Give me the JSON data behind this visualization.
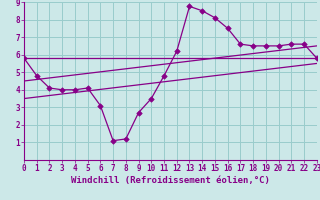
{
  "xlabel": "Windchill (Refroidissement éolien,°C)",
  "xlim": [
    0,
    23
  ],
  "ylim": [
    0,
    9
  ],
  "xticks": [
    0,
    1,
    2,
    3,
    4,
    5,
    6,
    7,
    8,
    9,
    10,
    11,
    12,
    13,
    14,
    15,
    16,
    17,
    18,
    19,
    20,
    21,
    22,
    23
  ],
  "yticks": [
    1,
    2,
    3,
    4,
    5,
    6,
    7,
    8,
    9
  ],
  "background_color": "#cce8e8",
  "line_color": "#880088",
  "grid_color": "#99cccc",
  "line1_x": [
    0,
    1,
    2,
    3,
    4,
    5,
    6,
    7,
    8,
    9,
    10,
    11,
    12,
    13,
    14,
    15,
    16,
    17,
    18,
    19,
    20,
    21,
    22,
    23
  ],
  "line1_y": [
    5.8,
    4.8,
    4.1,
    4.0,
    4.0,
    4.1,
    3.1,
    1.1,
    1.2,
    2.7,
    3.5,
    4.8,
    6.2,
    8.75,
    8.5,
    8.1,
    7.5,
    6.6,
    6.5,
    6.5,
    6.5,
    6.6,
    6.6,
    5.8
  ],
  "line2_x": [
    0,
    23
  ],
  "line2_y": [
    5.8,
    5.8
  ],
  "line3_x": [
    0,
    23
  ],
  "line3_y": [
    4.5,
    6.5
  ],
  "line4_x": [
    0,
    23
  ],
  "line4_y": [
    3.5,
    5.5
  ],
  "marker": "D",
  "markersize": 2.8,
  "tick_fontsize": 5.5,
  "xlabel_fontsize": 6.5
}
